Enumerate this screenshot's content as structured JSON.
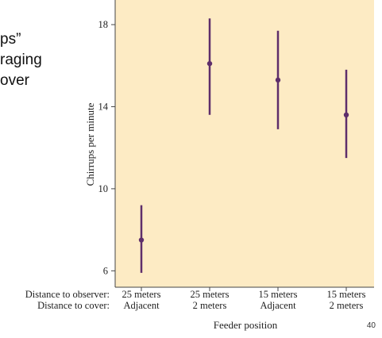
{
  "slide": {
    "text_lines": [
      "ps”",
      "raging",
      "over"
    ],
    "page_number": "40"
  },
  "chart_data": {
    "type": "scatter",
    "style": "mean with error bars",
    "ylabel": "Chirrups per minute",
    "xlabel": "Feeder position",
    "ylim": [
      5.2,
      19.2
    ],
    "yticks": [
      6,
      10,
      14,
      18
    ],
    "row_labels": [
      "Distance to observer:",
      "Distance to cover:"
    ],
    "categories": [
      {
        "observer": "25 meters",
        "cover": "Adjacent"
      },
      {
        "observer": "25 meters",
        "cover": "2 meters"
      },
      {
        "observer": "15 meters",
        "cover": "Adjacent"
      },
      {
        "observer": "15 meters",
        "cover": "2 meters"
      }
    ],
    "means": [
      7.5,
      16.1,
      15.3,
      13.6
    ],
    "lower": [
      5.9,
      13.6,
      12.9,
      11.5
    ],
    "upper": [
      9.2,
      18.3,
      17.7,
      15.8
    ],
    "colors": {
      "background": "#fdebc4",
      "marker": "#5e2e6b",
      "axis": "#444444"
    }
  }
}
